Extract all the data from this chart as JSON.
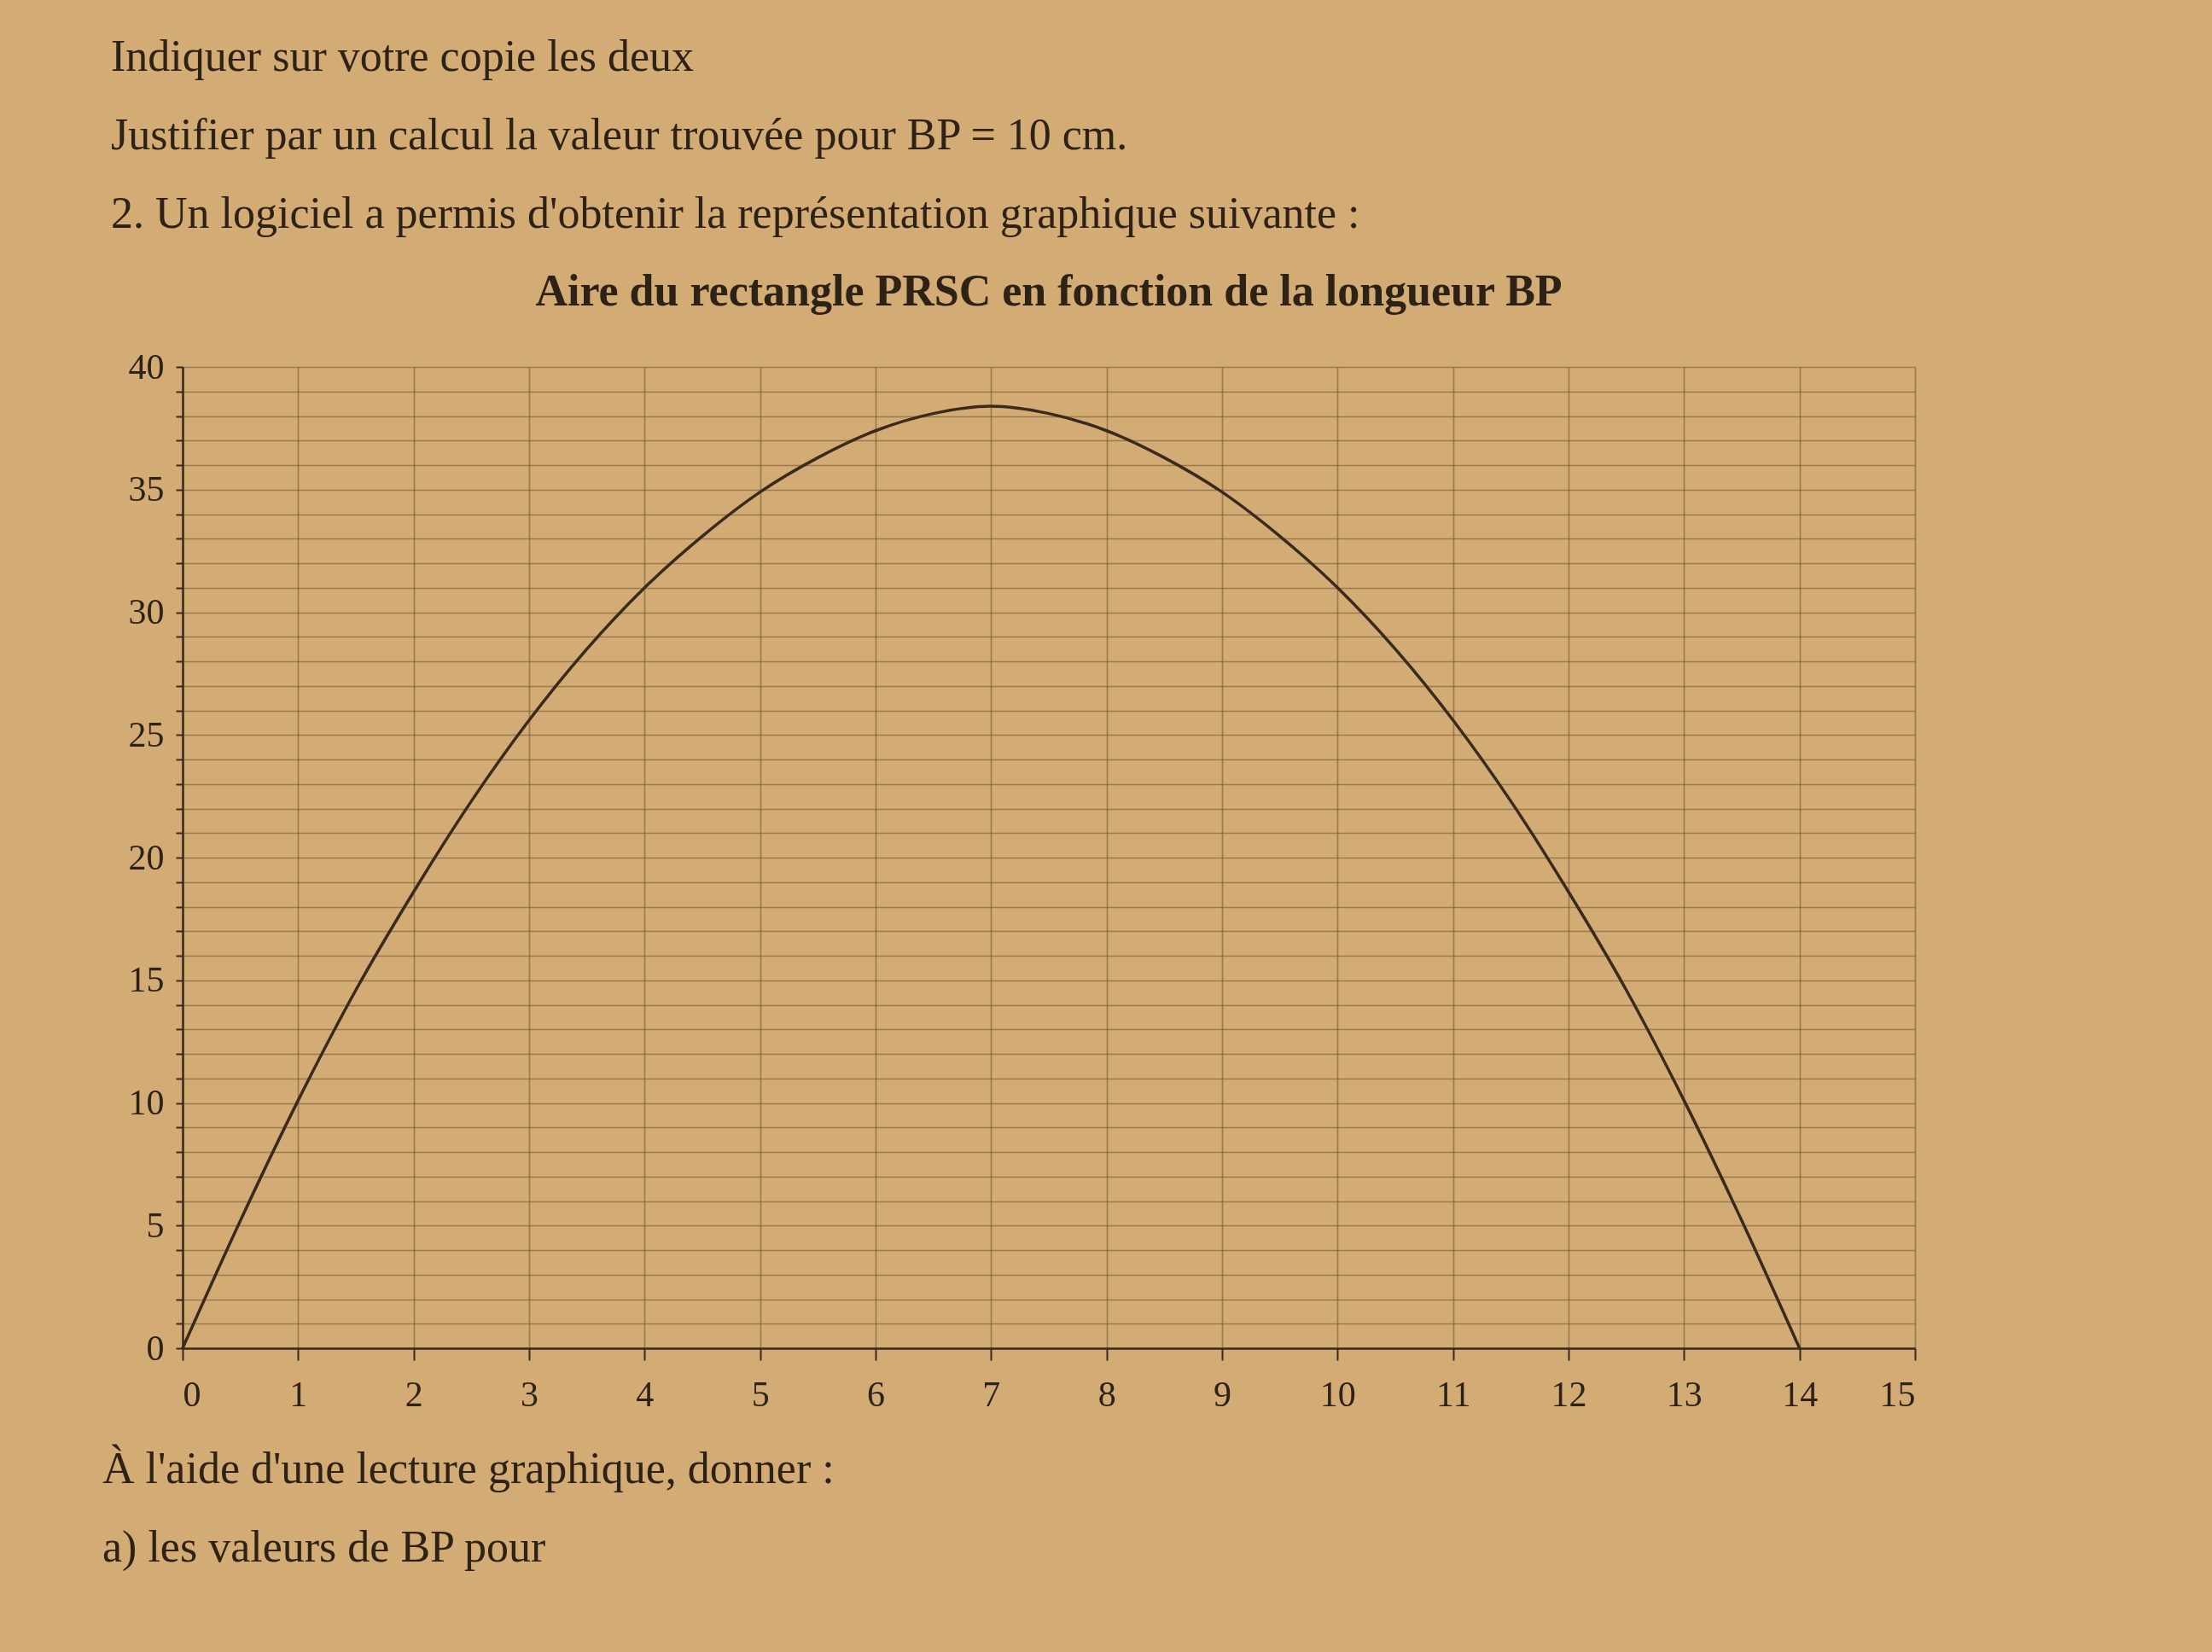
{
  "chart_data": {
    "type": "line",
    "title": "Aire du rectangle PRSC en fonction de la longueur BP",
    "annotations": [
      "Indiquer sur votre copie les deux",
      "Justifier par un calcul la valeur trouvée pour BP = 10 cm.",
      "2. Un logiciel a permis d'obtenir la représentation graphique suivante :",
      "À l'aide d'une lecture graphique, donner :",
      "a) les valeurs de BP pour"
    ],
    "x": [
      0,
      0.5,
      1,
      1.5,
      2,
      2.5,
      3,
      3.5,
      4,
      4.5,
      5,
      5.5,
      6,
      6.5,
      7,
      7.5,
      8,
      8.5,
      9,
      9.5,
      10,
      10.5,
      11,
      11.5,
      12,
      12.5,
      13,
      13.5,
      14
    ],
    "values": [
      0,
      5.2,
      10.1,
      14.6,
      18.6,
      22.3,
      25.6,
      28.5,
      31,
      33.1,
      34.9,
      36.3,
      37.4,
      38.1,
      38.4,
      38.1,
      37.4,
      36.3,
      34.9,
      33.1,
      31,
      28.5,
      25.6,
      22.3,
      18.6,
      14.6,
      10.1,
      5.2,
      0
    ],
    "color": "#3b2a1c",
    "xlim": [
      0,
      15
    ],
    "xticks": [
      0,
      1,
      2,
      3,
      4,
      5,
      6,
      7,
      8,
      9,
      10,
      11,
      12,
      13,
      14,
      15
    ],
    "ylim": [
      0,
      40
    ],
    "yticks": [
      0,
      {
        "value": 1,
        "label": null
      },
      {
        "value": 2,
        "label": null
      },
      {
        "value": 3,
        "label": null
      },
      {
        "value": 4,
        "label": null
      },
      5,
      {
        "value": 6,
        "label": null
      },
      {
        "value": 7,
        "label": null
      },
      {
        "value": 8,
        "label": null
      },
      {
        "value": 9,
        "label": null
      },
      10,
      {
        "value": 11,
        "label": null
      },
      {
        "value": 12,
        "label": null
      },
      {
        "value": 13,
        "label": null
      },
      {
        "value": 14,
        "label": null
      },
      15,
      {
        "value": 16,
        "label": null
      },
      {
        "value": 17,
        "label": null
      },
      {
        "value": 18,
        "label": null
      },
      {
        "value": 19,
        "label": null
      },
      20,
      {
        "value": 21,
        "label": null
      },
      {
        "value": 22,
        "label": null
      },
      {
        "value": 23,
        "label": null
      },
      {
        "value": 24,
        "label": null
      },
      25,
      {
        "value": 26,
        "label": null
      },
      {
        "value": 27,
        "label": null
      },
      {
        "value": 28,
        "label": null
      },
      {
        "value": 29,
        "label": null
      },
      30,
      {
        "value": 31,
        "label": null
      },
      {
        "value": 32,
        "label": null
      },
      {
        "value": 33,
        "label": null
      },
      {
        "value": 34,
        "label": null
      },
      35,
      {
        "value": 36,
        "label": null
      },
      {
        "value": 37,
        "label": null
      },
      {
        "value": 38,
        "label": null
      },
      {
        "value": 39,
        "label": null
      },
      40
    ],
    "grid": true
  }
}
